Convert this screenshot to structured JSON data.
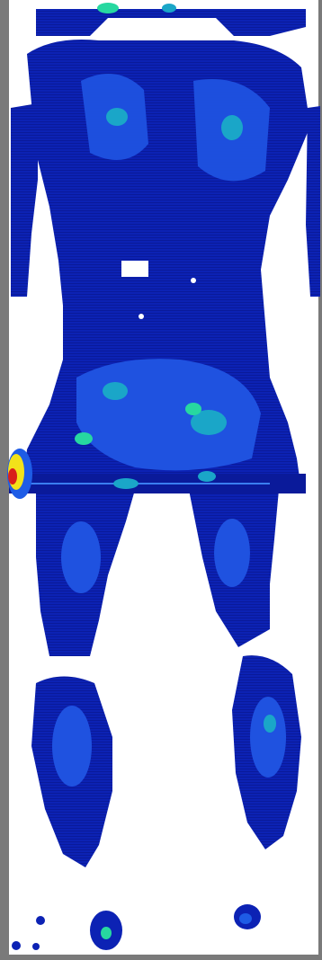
{
  "image": {
    "description_kind": "heatmap-body-scan",
    "palette": {
      "background": "#ffffff",
      "frame": "#7a7a7a",
      "low": "#0a1ea8",
      "mid_low": "#1438d8",
      "mid": "#1e5ce6",
      "high": "#1aa6c8",
      "very_high": "#27d8a0",
      "peak_yellow": "#f2e21a",
      "peak_red": "#d8201a"
    }
  }
}
